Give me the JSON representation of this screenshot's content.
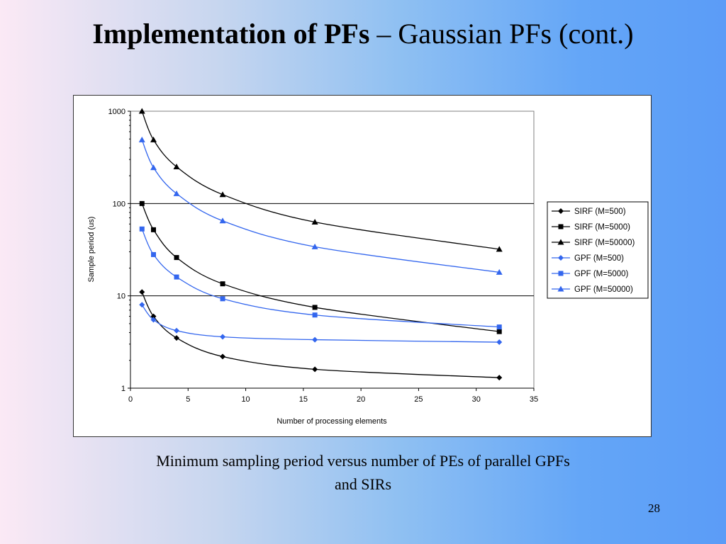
{
  "slide": {
    "title_bold": "Implementation of PFs",
    "title_rest": " – Gaussian PFs (cont.)",
    "caption_line1": "Minimum sampling period versus number of PEs of parallel GPFs",
    "caption_line2": "and SIRs",
    "page_number": "28"
  },
  "chart_data": {
    "type": "line",
    "xlabel": "Number of processing elements",
    "ylabel": "Sample period (us)",
    "xlim": [
      0,
      35
    ],
    "ylim": [
      1,
      1000
    ],
    "yscale": "log",
    "x_ticks": [
      "0",
      "5",
      "10",
      "15",
      "20",
      "25",
      "30",
      "35"
    ],
    "y_ticks": [
      "1",
      "10",
      "100",
      "1000"
    ],
    "grid": "horizontal major gridlines",
    "legend_position": "right",
    "x": [
      1,
      2,
      4,
      8,
      16,
      32
    ],
    "series": [
      {
        "name": "SIRF (M=500)",
        "color": "#000000",
        "marker": "diamond",
        "values": [
          11,
          6,
          3.5,
          2.2,
          1.6,
          1.3
        ]
      },
      {
        "name": "SIRF (M=5000)",
        "color": "#000000",
        "marker": "square",
        "values": [
          100,
          52,
          26,
          13.5,
          7.5,
          4.1
        ]
      },
      {
        "name": "SIRF (M=50000)",
        "color": "#000000",
        "marker": "triangle",
        "values": [
          1000,
          490,
          250,
          125,
          63,
          32
        ]
      },
      {
        "name": "GPF (M=500)",
        "color": "#3366ee",
        "marker": "diamond",
        "values": [
          8,
          5.5,
          4.2,
          3.6,
          3.35,
          3.15
        ]
      },
      {
        "name": "GPF (M=5000)",
        "color": "#3366ee",
        "marker": "square",
        "values": [
          53,
          28,
          16,
          9.3,
          6.2,
          4.6
        ]
      },
      {
        "name": "GPF (M=50000)",
        "color": "#3366ee",
        "marker": "triangle",
        "values": [
          490,
          245,
          128,
          65,
          34,
          18
        ]
      }
    ]
  }
}
